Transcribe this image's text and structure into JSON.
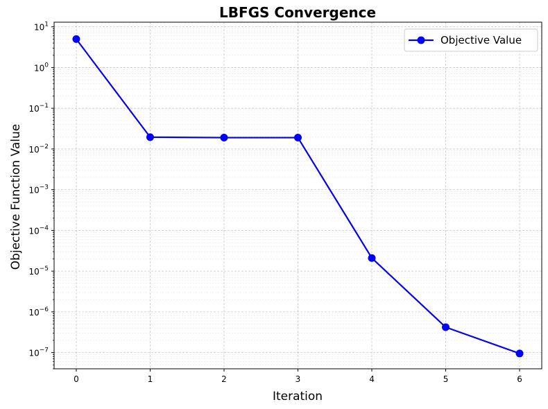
{
  "chart_data": {
    "type": "line",
    "title": "LBFGS Convergence",
    "xlabel": "Iteration",
    "ylabel": "Objective Function Value",
    "x": [
      0,
      1,
      2,
      3,
      4,
      5,
      6
    ],
    "series": [
      {
        "name": "Objective Value",
        "values": [
          5.0,
          0.0195,
          0.019,
          0.019,
          2.1e-05,
          4.2e-07,
          9.5e-08
        ]
      }
    ],
    "x_ticks": [
      "0",
      "1",
      "2",
      "3",
      "4",
      "5",
      "6"
    ],
    "y_scale": "log",
    "y_ticks": [
      {
        "base": "10",
        "exp": "1"
      },
      {
        "base": "10",
        "exp": "0"
      },
      {
        "base": "10",
        "exp": "−1"
      },
      {
        "base": "10",
        "exp": "−2"
      },
      {
        "base": "10",
        "exp": "−3"
      },
      {
        "base": "10",
        "exp": "−4"
      },
      {
        "base": "10",
        "exp": "−5"
      },
      {
        "base": "10",
        "exp": "−6"
      },
      {
        "base": "10",
        "exp": "−7"
      }
    ],
    "xlim": [
      -0.3,
      6.3
    ],
    "ylim": [
      4e-08,
      13
    ],
    "grid": true,
    "legend_position": "top-right",
    "line_color": "#0000ff"
  }
}
